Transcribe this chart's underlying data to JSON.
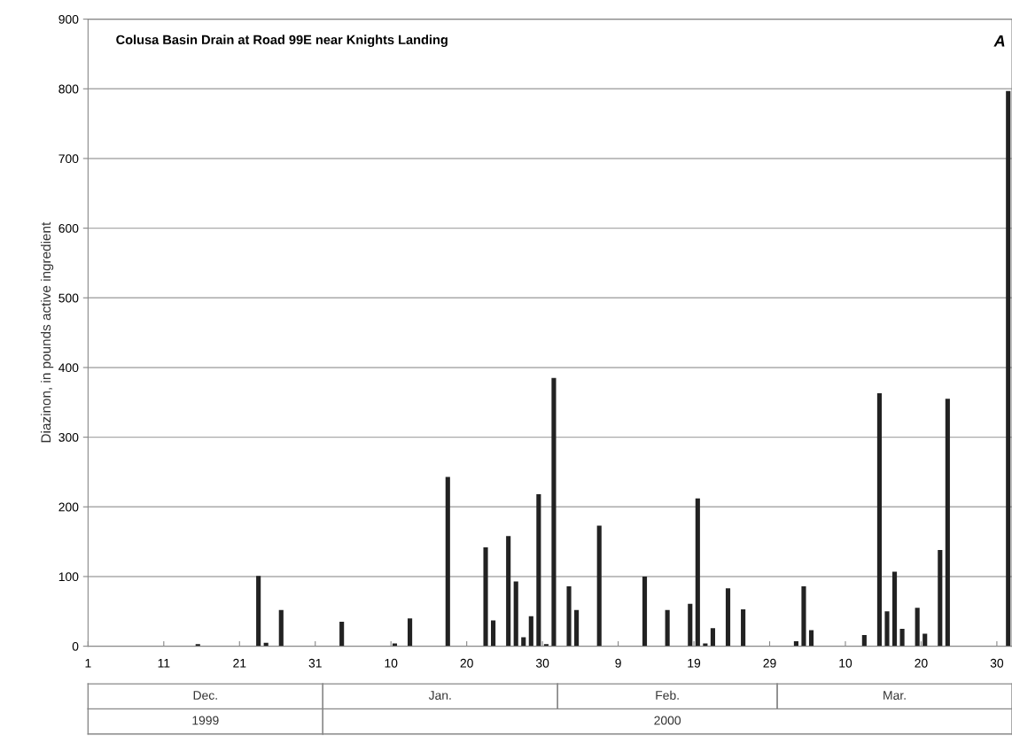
{
  "chart_data": {
    "type": "bar",
    "title": "Colusa Basin Drain at Road 99E near Knights Landing",
    "ylabel": "Diazinon, in pounds active ingredient",
    "annotations": [
      "A",
      "Dec.",
      "Jan.",
      "Feb.",
      "Mar.",
      "1999",
      "2000"
    ],
    "x": [
      "1999-12-15",
      "1999-12-23",
      "1999-12-24",
      "1999-12-26",
      "2000-01-03",
      "2000-01-10",
      "2000-01-12",
      "2000-01-17",
      "2000-01-22",
      "2000-01-23",
      "2000-01-25",
      "2000-01-26",
      "2000-01-27",
      "2000-01-28",
      "2000-01-29",
      "2000-01-30",
      "2000-01-31",
      "2000-02-02",
      "2000-02-03",
      "2000-02-06",
      "2000-02-12",
      "2000-02-15",
      "2000-02-18",
      "2000-02-19",
      "2000-02-20",
      "2000-02-21",
      "2000-02-23",
      "2000-02-25",
      "2000-03-03",
      "2000-03-04",
      "2000-03-05",
      "2000-03-12",
      "2000-03-14",
      "2000-03-15",
      "2000-03-16",
      "2000-03-17",
      "2000-03-19",
      "2000-03-20",
      "2000-03-22",
      "2000-03-23",
      "2000-03-31"
    ],
    "values": [
      3,
      101,
      5,
      52,
      35,
      4,
      40,
      243,
      142,
      37,
      158,
      93,
      13,
      43,
      218,
      3,
      385,
      86,
      52,
      173,
      100,
      52,
      61,
      212,
      4,
      26,
      83,
      53,
      7,
      86,
      23,
      16,
      363,
      50,
      107,
      25,
      55,
      18,
      138,
      355,
      797
    ],
    "color": "#222222",
    "xlim": [
      "1999-12-01",
      "2000-04-01"
    ],
    "xticks": [
      {
        "value": "1999-12-01",
        "label": "1"
      },
      {
        "value": "1999-12-11",
        "label": "11"
      },
      {
        "value": "1999-12-21",
        "label": "21"
      },
      {
        "value": "1999-12-31",
        "label": "31"
      },
      {
        "value": "2000-01-10",
        "label": "10"
      },
      {
        "value": "2000-01-20",
        "label": "20"
      },
      {
        "value": "2000-01-30",
        "label": "30"
      },
      {
        "value": "2000-02-09",
        "label": "9"
      },
      {
        "value": "2000-02-19",
        "label": "19"
      },
      {
        "value": "2000-02-29",
        "label": "29"
      },
      {
        "value": "2000-03-10",
        "label": "10"
      },
      {
        "value": "2000-03-20",
        "label": "20"
      },
      {
        "value": "2000-03-30",
        "label": "30"
      }
    ],
    "ylim": [
      0,
      900
    ],
    "yticks": [
      0,
      100,
      200,
      300,
      400,
      500,
      600,
      700,
      800,
      900
    ],
    "grid": "y"
  }
}
